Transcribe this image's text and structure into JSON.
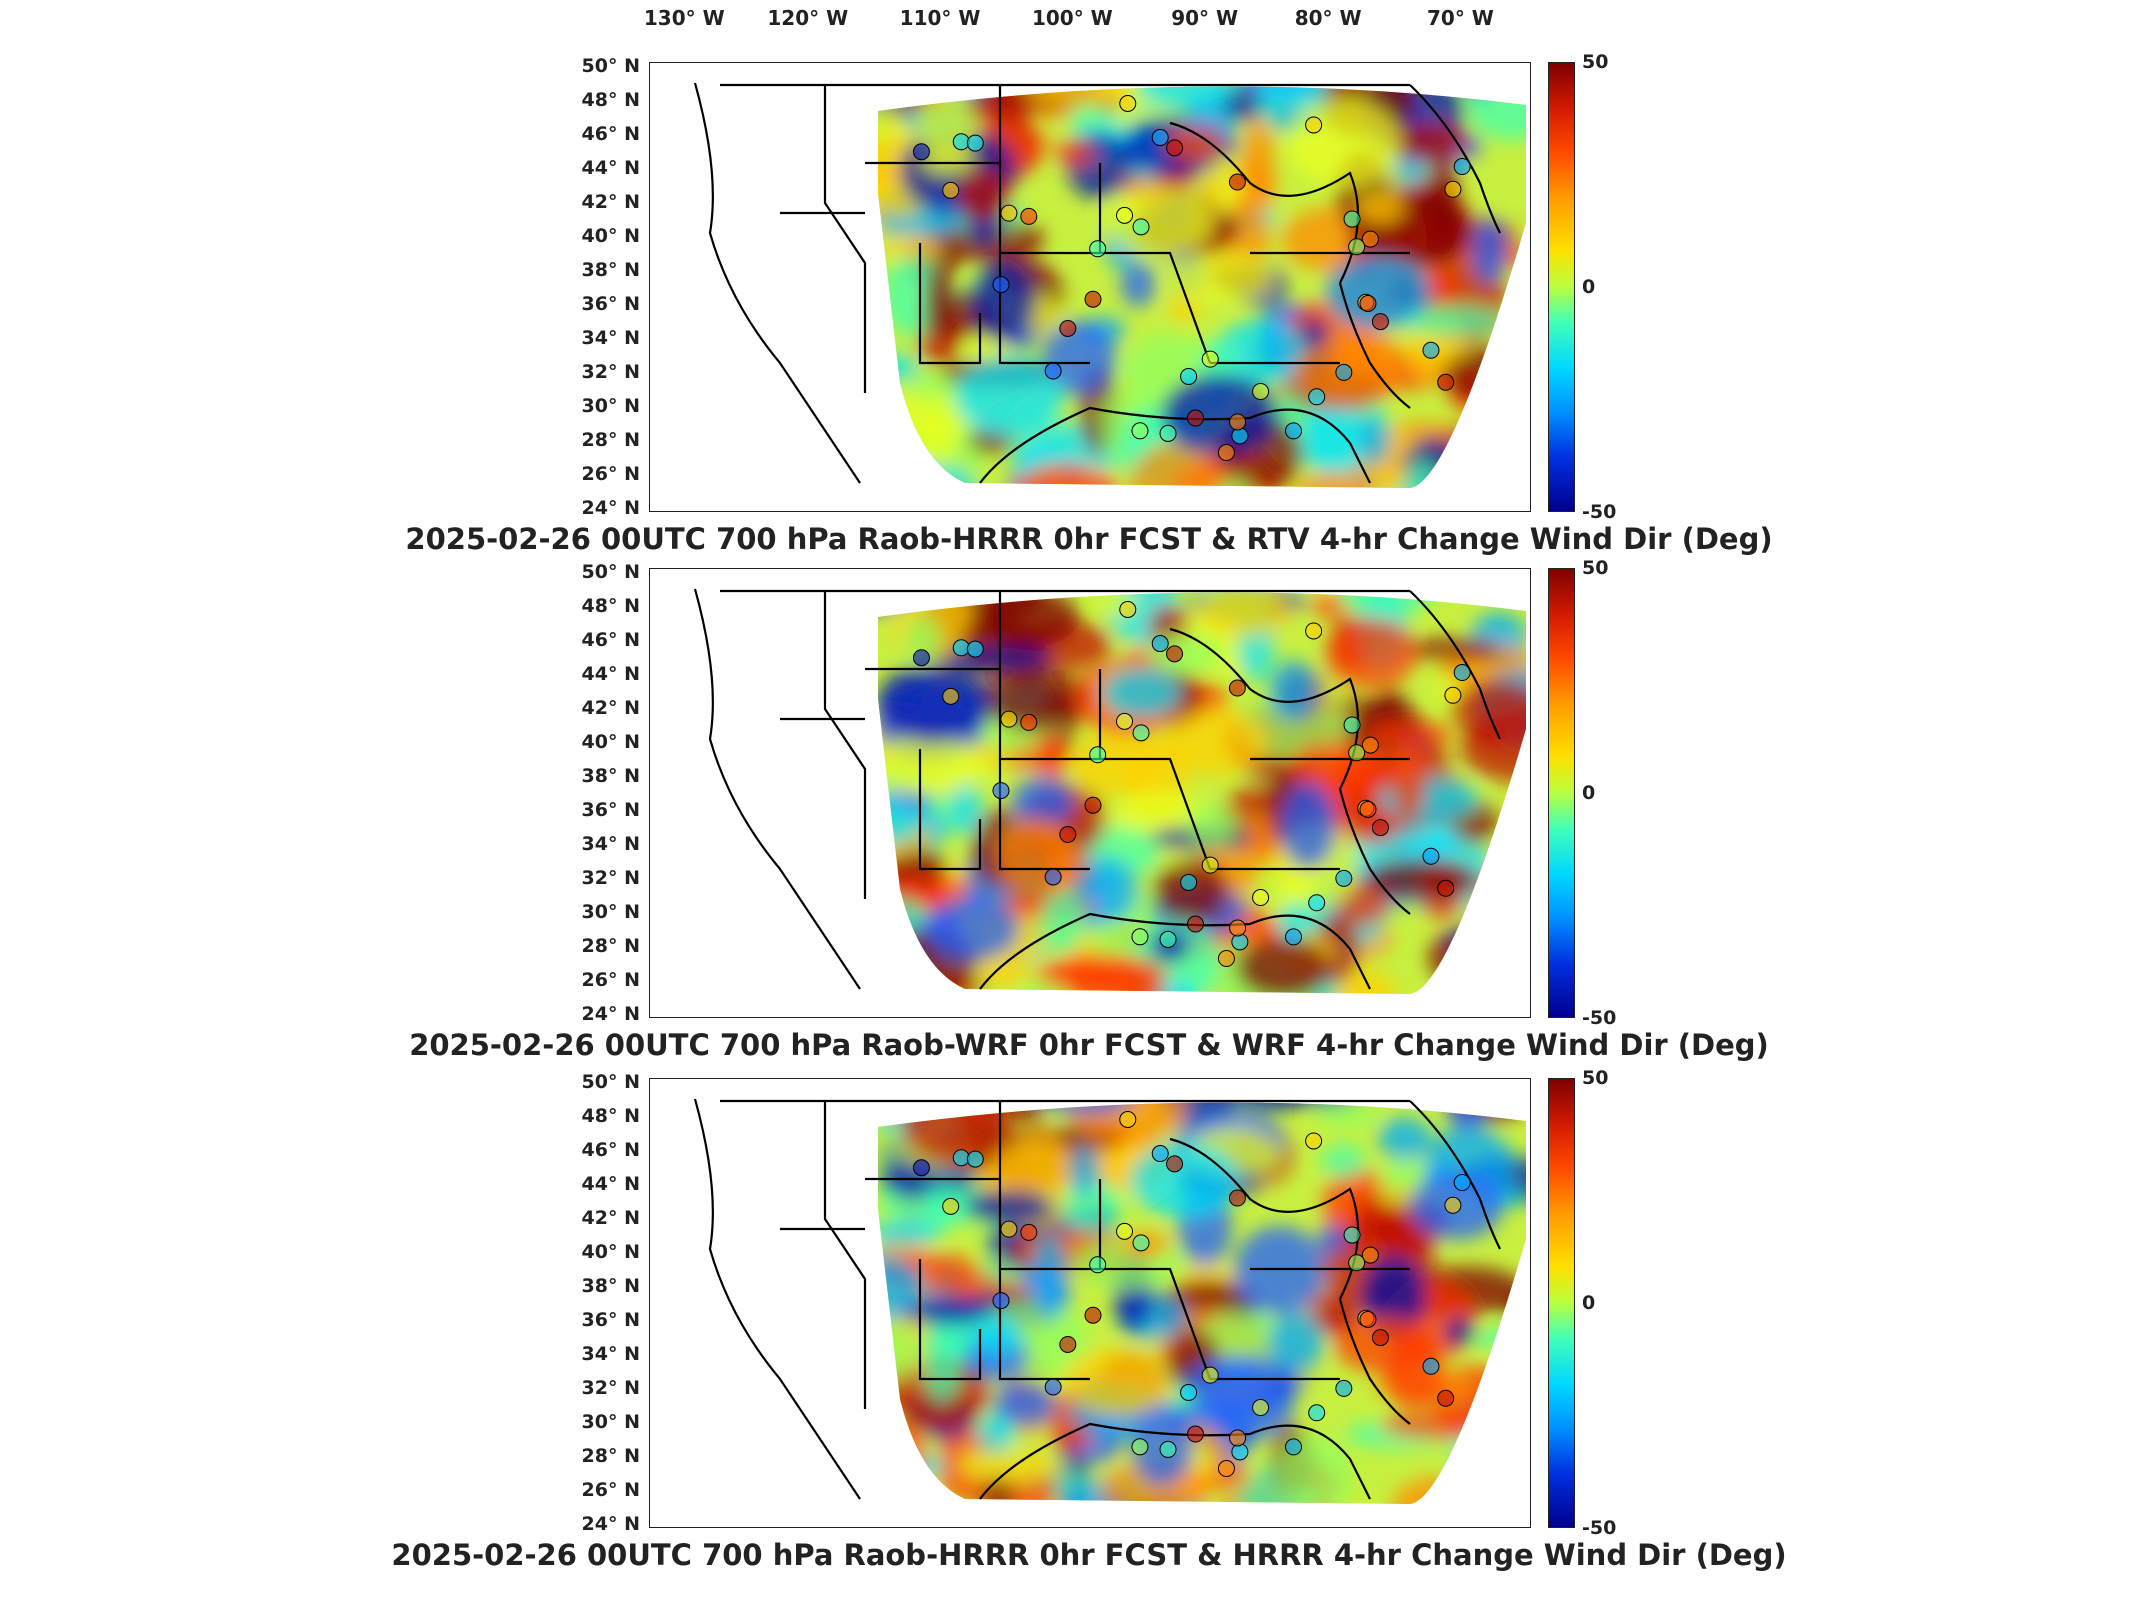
{
  "lon_ticks": [
    "130° W",
    "120° W",
    "110° W",
    "100° W",
    "90° W",
    "80° W",
    "70° W"
  ],
  "lat_ticks": [
    "50° N",
    "48° N",
    "46° N",
    "44° N",
    "42° N",
    "40° N",
    "38° N",
    "36° N",
    "34° N",
    "32° N",
    "30° N",
    "28° N",
    "26° N",
    "24° N"
  ],
  "colorbar": {
    "max_label": "50",
    "mid_label": "0",
    "min_label": "-50"
  },
  "panels": [
    {
      "title": "2025-02-26 00UTC 700 hPa Raob-HRRR 0hr FCST & RTV 4-hr Change Wind Dir (Deg)"
    },
    {
      "title": "2025-02-26 00UTC 700 hPa Raob-WRF 0hr FCST & WRF 4-hr Change Wind Dir (Deg)"
    },
    {
      "title": "2025-02-26 00UTC 700 hPa Raob-HRRR 0hr FCST & HRRR 4-hr Change Wind Dir (Deg)"
    }
  ],
  "colors": {
    "high": "#7f0000",
    "mid": "#b8ff40",
    "low": "#00008f"
  }
}
